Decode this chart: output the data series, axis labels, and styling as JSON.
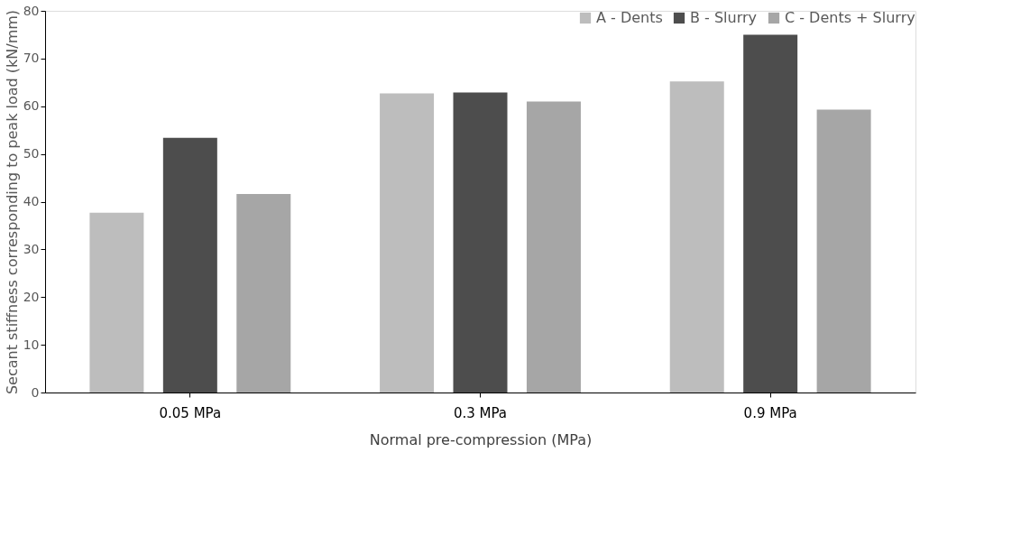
{
  "chart_data": {
    "type": "bar",
    "xlabel": "Normal pre-compression (MPa)",
    "ylabel": "Secant stiffness corresponding to peak load (kN/mm)",
    "categories": [
      "0.05 MPa",
      "0.3 MPa",
      "0.9 MPa"
    ],
    "series": [
      {
        "name": "A - Dents",
        "color": "#bdbdbd",
        "values": [
          37.7,
          62.7,
          65.2
        ]
      },
      {
        "name": "B - Slurry",
        "color": "#4d4d4d",
        "values": [
          53.4,
          62.9,
          75.0
        ]
      },
      {
        "name": "C - Dents + Slurry",
        "color": "#a6a6a6",
        "values": [
          41.6,
          61.0,
          59.3
        ]
      }
    ],
    "ylim": [
      0,
      80
    ],
    "yticks": [
      0,
      10,
      20,
      30,
      40,
      50,
      60,
      70,
      80
    ],
    "grid": false,
    "legend": "top right"
  }
}
